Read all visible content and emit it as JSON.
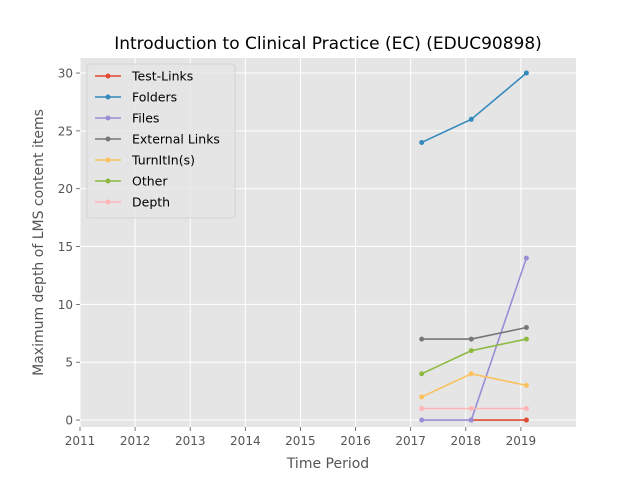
{
  "chart_data": {
    "type": "line",
    "title": "Introduction to Clinical Practice (EC) (EDUC90898)",
    "xlabel": "Time Period",
    "ylabel": "Maximum depth of LMS content items",
    "xlim": [
      2011,
      2020
    ],
    "ylim": [
      -0.6,
      31.3
    ],
    "xticks": [
      "2011",
      "2012",
      "2013",
      "2014",
      "2015",
      "2016",
      "2017",
      "2018",
      "2019"
    ],
    "yticks": [
      0,
      5,
      10,
      15,
      20,
      25,
      30
    ],
    "grid": true,
    "legend_position": "top-left",
    "x": [
      2017.2,
      2018.1,
      2019.1
    ],
    "series": [
      {
        "name": "Test-Links",
        "color": "#E24A33",
        "values": [
          null,
          0,
          0
        ]
      },
      {
        "name": "Folders",
        "color": "#348ABD",
        "values": [
          24,
          26,
          30
        ]
      },
      {
        "name": "Files",
        "color": "#988ED5",
        "values": [
          0,
          0,
          14
        ]
      },
      {
        "name": "External Links",
        "color": "#777777",
        "values": [
          7,
          7,
          8
        ]
      },
      {
        "name": "TurnItIn(s)",
        "color": "#FBC15E",
        "values": [
          2,
          4,
          3
        ]
      },
      {
        "name": "Other",
        "color": "#8EBA42",
        "values": [
          4,
          6,
          7
        ]
      },
      {
        "name": "Depth",
        "color": "#FFB5B8",
        "values": [
          1,
          1,
          1
        ]
      }
    ]
  }
}
